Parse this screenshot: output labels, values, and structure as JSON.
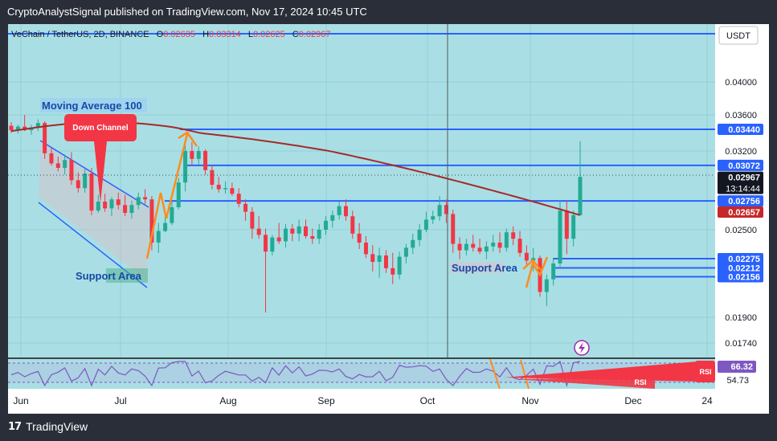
{
  "header": {
    "publisher_text": "CryptoAnalystSignal published on TradingView.com, Nov 17, 2024 10:45 UTC"
  },
  "footer": {
    "brand": "TradingView",
    "brand_icon": "tradingview-logo-icon"
  },
  "symbol_info": {
    "name": "VeChain / TetherUS, 2D, BINANCE",
    "o_label": "O",
    "o_value": "0.02635",
    "h_label": "H",
    "h_value": "0.03314",
    "l_label": "L",
    "l_value": "0.02625",
    "c_label": "C",
    "c_value": "0.02967"
  },
  "currency_button": "USDT",
  "colors": {
    "background": "#a9dfe4",
    "up": "#22ab94",
    "down": "#f23645",
    "level_line": "#2962ff",
    "ma_line": "#a52a2a",
    "arrow": "#ff8c1a",
    "annotation_red": "#f23645",
    "rsi_line": "#7e57c2"
  },
  "annotations": {
    "ma_label": "Moving Average 100",
    "down_channel_label": "Down Channel",
    "support_label_left": "Support Area",
    "support_label_right": "Support Area",
    "rsi_label_1": "RSI",
    "rsi_label_2": "RSI"
  },
  "chart_data": {
    "type": "candlestick",
    "title": "VeChain / TetherUS, 2D, BINANCE",
    "y_ticks": [
      "0.04000",
      "0.03600",
      "0.03200",
      "0.02500",
      "0.01900",
      "0.01740"
    ],
    "x_ticks": [
      "Jun",
      "Jul",
      "Aug",
      "Sep",
      "Oct",
      "Nov",
      "Dec",
      "24"
    ],
    "price_badges": [
      {
        "value": "0.03440",
        "kind": "level"
      },
      {
        "value": "0.03072",
        "kind": "level"
      },
      {
        "value": "0.02967",
        "kind": "last",
        "countdown": "13:14:44"
      },
      {
        "value": "0.02756",
        "kind": "level"
      },
      {
        "value": "0.02657",
        "kind": "ma"
      },
      {
        "value": "0.02275",
        "kind": "level"
      },
      {
        "value": "0.02212",
        "kind": "level"
      },
      {
        "value": "0.02156",
        "kind": "level"
      }
    ],
    "horizontal_levels": [
      0.0344,
      0.03072,
      0.02756,
      0.02275,
      0.02212,
      0.02156
    ],
    "rsi": {
      "value": "66.32",
      "reference": "54.73"
    },
    "candles": [
      [
        0.0348,
        0.0352,
        0.034,
        0.0343
      ],
      [
        0.0343,
        0.0349,
        0.0339,
        0.0347
      ],
      [
        0.0347,
        0.036,
        0.0342,
        0.0343
      ],
      [
        0.0343,
        0.0349,
        0.0338,
        0.0346
      ],
      [
        0.0346,
        0.0355,
        0.0342,
        0.0351
      ],
      [
        0.0351,
        0.0353,
        0.0313,
        0.0318
      ],
      [
        0.0318,
        0.0324,
        0.0307,
        0.0309
      ],
      [
        0.0309,
        0.0315,
        0.0302,
        0.0305
      ],
      [
        0.0305,
        0.0317,
        0.0299,
        0.0312
      ],
      [
        0.0312,
        0.0319,
        0.029,
        0.0294
      ],
      [
        0.0294,
        0.0301,
        0.0283,
        0.0287
      ],
      [
        0.0287,
        0.0304,
        0.0283,
        0.03
      ],
      [
        0.03,
        0.0305,
        0.0263,
        0.0267
      ],
      [
        0.0267,
        0.0281,
        0.0265,
        0.0275
      ],
      [
        0.0275,
        0.0282,
        0.0266,
        0.0269
      ],
      [
        0.0269,
        0.0279,
        0.0262,
        0.0277
      ],
      [
        0.0277,
        0.0283,
        0.0268,
        0.0272
      ],
      [
        0.0272,
        0.0281,
        0.0262,
        0.0265
      ],
      [
        0.0265,
        0.0276,
        0.026,
        0.0272
      ],
      [
        0.0272,
        0.0283,
        0.0268,
        0.0279
      ],
      [
        0.0279,
        0.0286,
        0.0273,
        0.0277
      ],
      [
        0.0277,
        0.028,
        0.0234,
        0.024
      ],
      [
        0.024,
        0.0256,
        0.0232,
        0.0249
      ],
      [
        0.0249,
        0.0265,
        0.0248,
        0.0256
      ],
      [
        0.0256,
        0.0275,
        0.0254,
        0.027
      ],
      [
        0.027,
        0.0296,
        0.0268,
        0.0292
      ],
      [
        0.0292,
        0.0333,
        0.0284,
        0.032
      ],
      [
        0.032,
        0.033,
        0.0307,
        0.0313
      ],
      [
        0.0313,
        0.0325,
        0.0308,
        0.032
      ],
      [
        0.032,
        0.0322,
        0.0299,
        0.0303
      ],
      [
        0.0303,
        0.0308,
        0.0286,
        0.029
      ],
      [
        0.029,
        0.0297,
        0.0283,
        0.0286
      ],
      [
        0.0286,
        0.0293,
        0.0282,
        0.0287
      ],
      [
        0.0287,
        0.0292,
        0.028,
        0.0282
      ],
      [
        0.0282,
        0.0287,
        0.027,
        0.0273
      ],
      [
        0.0273,
        0.0277,
        0.0258,
        0.0266
      ],
      [
        0.0266,
        0.027,
        0.0243,
        0.0251
      ],
      [
        0.0251,
        0.0262,
        0.0243,
        0.0246
      ],
      [
        0.0246,
        0.0251,
        0.0193,
        0.0233
      ],
      [
        0.0233,
        0.0246,
        0.023,
        0.0244
      ],
      [
        0.0244,
        0.0256,
        0.0239,
        0.0241
      ],
      [
        0.0241,
        0.0255,
        0.0236,
        0.0251
      ],
      [
        0.0251,
        0.0255,
        0.0241,
        0.0247
      ],
      [
        0.0247,
        0.0259,
        0.0241,
        0.0253
      ],
      [
        0.0253,
        0.0259,
        0.0243,
        0.0245
      ],
      [
        0.0245,
        0.0251,
        0.0239,
        0.0243
      ],
      [
        0.0243,
        0.0255,
        0.0239,
        0.025
      ],
      [
        0.025,
        0.0262,
        0.0246,
        0.0258
      ],
      [
        0.0258,
        0.0267,
        0.0252,
        0.0263
      ],
      [
        0.0263,
        0.0275,
        0.0259,
        0.0271
      ],
      [
        0.0271,
        0.0277,
        0.0258,
        0.0262
      ],
      [
        0.0262,
        0.0267,
        0.0243,
        0.0247
      ],
      [
        0.0247,
        0.0256,
        0.0235,
        0.024
      ],
      [
        0.024,
        0.0245,
        0.0228,
        0.0231
      ],
      [
        0.0231,
        0.0238,
        0.0219,
        0.0225
      ],
      [
        0.0225,
        0.0236,
        0.0215,
        0.023
      ],
      [
        0.023,
        0.0234,
        0.0218,
        0.0221
      ],
      [
        0.0221,
        0.0232,
        0.0211,
        0.0217
      ],
      [
        0.0217,
        0.0233,
        0.0214,
        0.0229
      ],
      [
        0.0229,
        0.0239,
        0.0224,
        0.0236
      ],
      [
        0.0236,
        0.0247,
        0.0231,
        0.0242
      ],
      [
        0.0242,
        0.0255,
        0.0237,
        0.025
      ],
      [
        0.025,
        0.0266,
        0.0248,
        0.0259
      ],
      [
        0.0259,
        0.0267,
        0.0255,
        0.0262
      ],
      [
        0.0262,
        0.028,
        0.0258,
        0.0272
      ],
      [
        0.0272,
        0.0277,
        0.0256,
        0.0264
      ],
      [
        0.0264,
        0.0268,
        0.0232,
        0.0239
      ],
      [
        0.0239,
        0.0244,
        0.0227,
        0.0234
      ],
      [
        0.0234,
        0.0243,
        0.023,
        0.0239
      ],
      [
        0.0239,
        0.0246,
        0.0233,
        0.0236
      ],
      [
        0.0236,
        0.0243,
        0.0231,
        0.0233
      ],
      [
        0.0233,
        0.0241,
        0.0227,
        0.0237
      ],
      [
        0.0237,
        0.0246,
        0.0233,
        0.024
      ],
      [
        0.024,
        0.0248,
        0.0232,
        0.0236
      ],
      [
        0.0236,
        0.0251,
        0.0233,
        0.0248
      ],
      [
        0.0248,
        0.0253,
        0.0238,
        0.0243
      ],
      [
        0.0243,
        0.0249,
        0.0229,
        0.0232
      ],
      [
        0.0232,
        0.0238,
        0.0223,
        0.0226
      ],
      [
        0.0226,
        0.0236,
        0.0219,
        0.0228
      ],
      [
        0.0228,
        0.023,
        0.0203,
        0.0206
      ],
      [
        0.0206,
        0.0217,
        0.0197,
        0.0214
      ],
      [
        0.0214,
        0.0228,
        0.021,
        0.0224
      ],
      [
        0.0224,
        0.0276,
        0.0222,
        0.0267
      ],
      [
        0.0267,
        0.0276,
        0.0231,
        0.0243
      ],
      [
        0.0243,
        0.0267,
        0.0237,
        0.0263
      ],
      [
        0.0263,
        0.0331,
        0.0263,
        0.0297
      ]
    ]
  }
}
